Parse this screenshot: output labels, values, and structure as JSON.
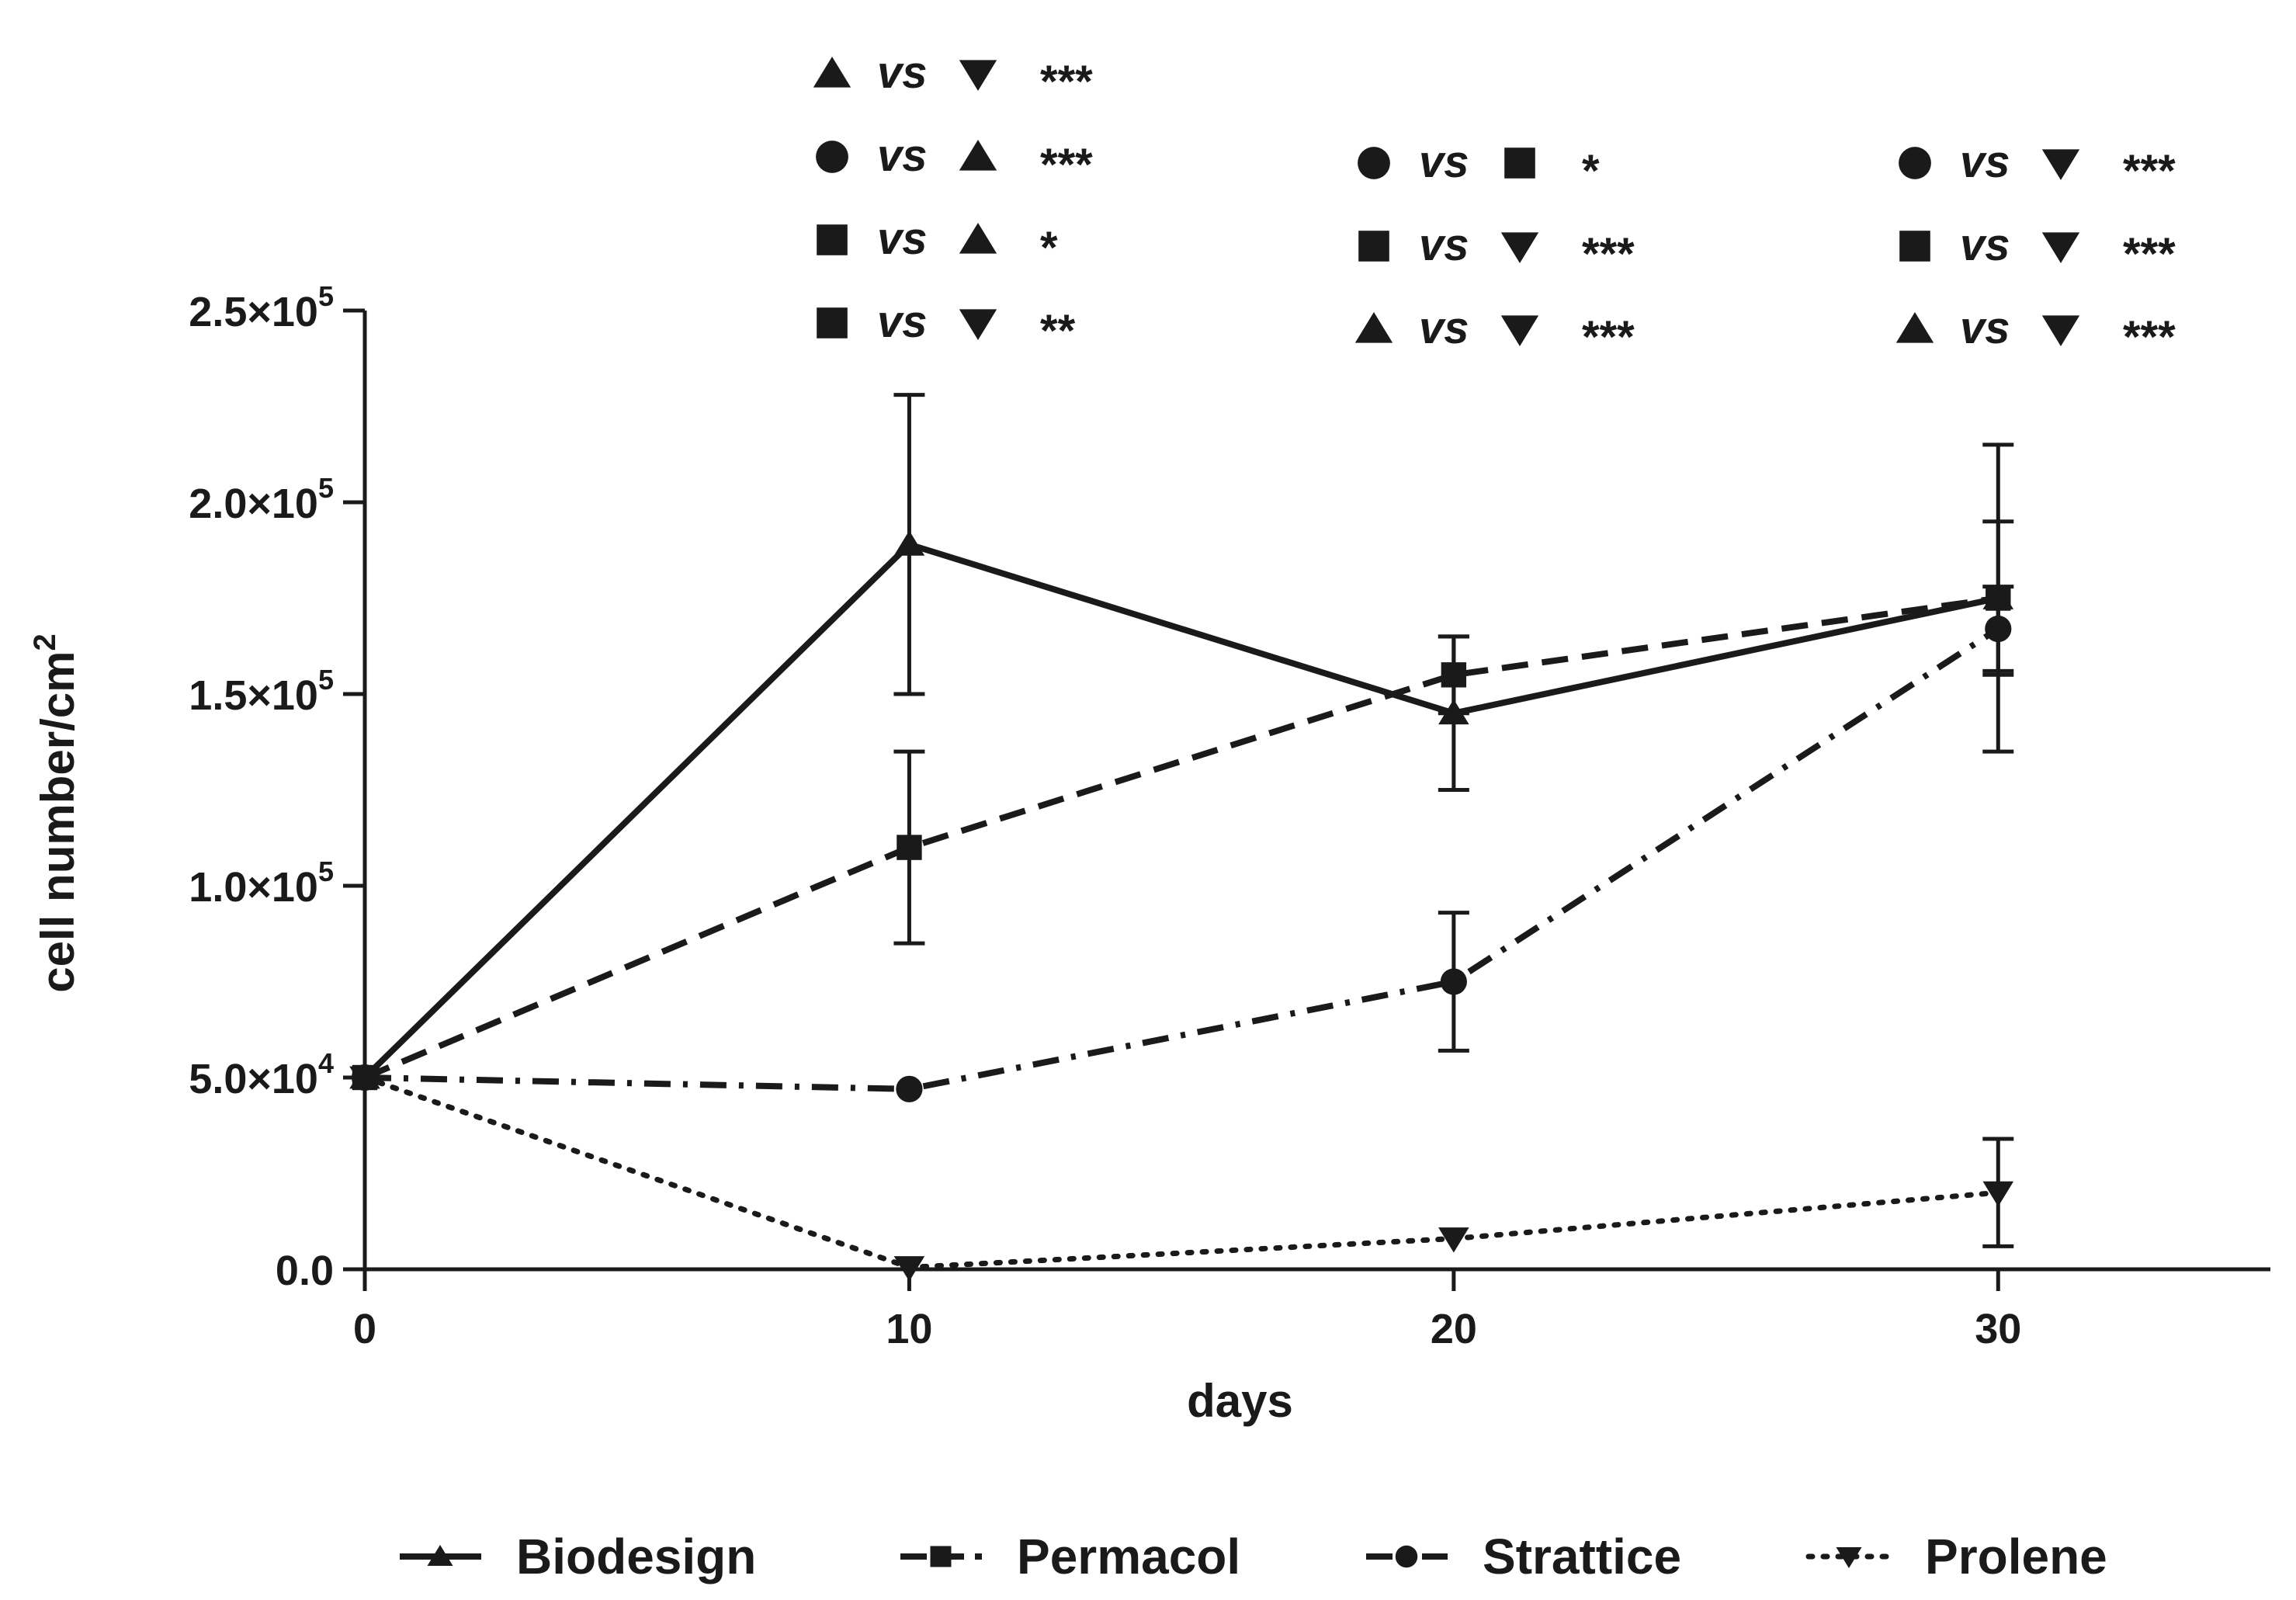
{
  "chart_data": {
    "type": "line",
    "title": "",
    "xlabel": "days",
    "ylabel": "cell number/cm",
    "ylabel_superscript": "2",
    "xlim": [
      0,
      35
    ],
    "ylim": [
      0,
      250000
    ],
    "x_ticks": [
      0,
      10,
      20,
      30
    ],
    "x_tick_labels": [
      "0",
      "10",
      "20",
      "30"
    ],
    "y_ticks": [
      0,
      50000,
      100000,
      150000,
      200000,
      250000
    ],
    "y_tick_labels": [
      {
        "mantissa": "0.0",
        "exp": ""
      },
      {
        "mantissa": "5.0×10",
        "exp": "4"
      },
      {
        "mantissa": "1.0×10",
        "exp": "5"
      },
      {
        "mantissa": "1.5×10",
        "exp": "5"
      },
      {
        "mantissa": "2.0×10",
        "exp": "5"
      },
      {
        "mantissa": "2.5×10",
        "exp": "5"
      }
    ],
    "grid": false,
    "legend_position": "bottom",
    "x": [
      0,
      10,
      20,
      30
    ],
    "series": [
      {
        "name": "Biodesign",
        "marker": "triangle-up",
        "line": "solid",
        "values": [
          50000,
          189000,
          145000,
          175000
        ],
        "errors": [
          0,
          39000,
          20000,
          40000
        ]
      },
      {
        "name": "Permacol",
        "marker": "square",
        "line": "dashed",
        "values": [
          50000,
          110000,
          155000,
          175000
        ],
        "errors": [
          0,
          25000,
          10000,
          20000
        ]
      },
      {
        "name": "Strattice",
        "marker": "circle",
        "line": "dashdot",
        "values": [
          50000,
          47000,
          75000,
          167000
        ],
        "errors": [
          0,
          0,
          18000,
          11000
        ]
      },
      {
        "name": "Prolene",
        "marker": "triangle-down",
        "line": "dotted",
        "values": [
          50000,
          500,
          8000,
          20000
        ],
        "errors": [
          0,
          0,
          0,
          14000
        ]
      }
    ],
    "significance": [
      {
        "x": 10,
        "comparisons": [
          {
            "a": "triangle-up",
            "b": "triangle-down",
            "stars": "***"
          },
          {
            "a": "circle",
            "b": "triangle-up",
            "stars": "***"
          },
          {
            "a": "square",
            "b": "triangle-up",
            "stars": "*"
          },
          {
            "a": "square",
            "b": "triangle-down",
            "stars": "**"
          }
        ]
      },
      {
        "x": 20,
        "comparisons": [
          {
            "a": "circle",
            "b": "square",
            "stars": "*"
          },
          {
            "a": "square",
            "b": "triangle-down",
            "stars": "***"
          },
          {
            "a": "triangle-up",
            "b": "triangle-down",
            "stars": "***"
          }
        ]
      },
      {
        "x": 30,
        "comparisons": [
          {
            "a": "circle",
            "b": "triangle-down",
            "stars": "***"
          },
          {
            "a": "square",
            "b": "triangle-down",
            "stars": "***"
          },
          {
            "a": "triangle-up",
            "b": "triangle-down",
            "stars": "***"
          }
        ]
      }
    ],
    "vs_label": "vs"
  }
}
